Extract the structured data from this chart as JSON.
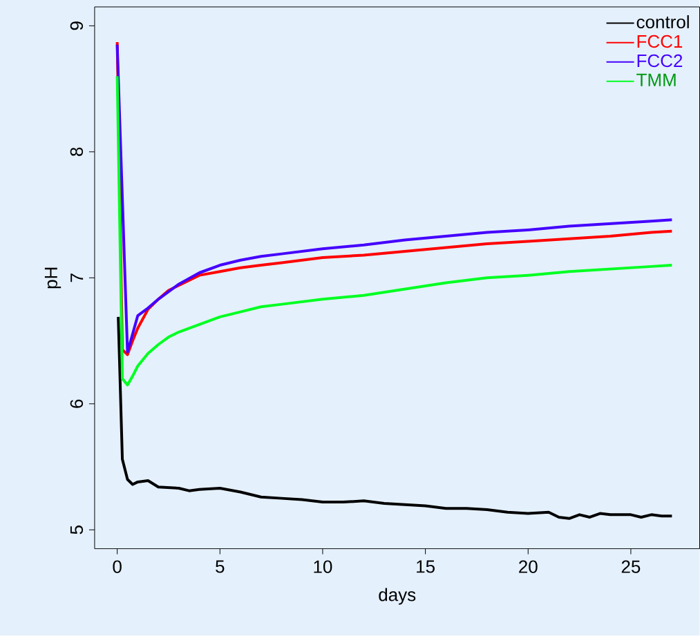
{
  "chart_data": {
    "type": "line",
    "xlabel": "days",
    "ylabel": "pH",
    "xlim": [
      -1.1,
      28.35
    ],
    "ylim": [
      4.85,
      9.15
    ],
    "xticks": [
      0,
      5,
      10,
      15,
      20,
      25
    ],
    "yticks": [
      5,
      6,
      7,
      8,
      9
    ],
    "grid": false,
    "legend": "top right",
    "marker": "none",
    "line_style": "solid",
    "series": [
      {
        "name": "control",
        "color": "#000000",
        "x": [
          0.05,
          0.25,
          0.5,
          0.75,
          1,
          1.5,
          2,
          3,
          3.5,
          4,
          5,
          6,
          7,
          8,
          9,
          10,
          11,
          12,
          13,
          14,
          15,
          16,
          17,
          18,
          19,
          20,
          21,
          21.5,
          22,
          22.5,
          23,
          23.5,
          24,
          25,
          25.5,
          26,
          26.5,
          27
        ],
        "values": [
          6.69,
          5.56,
          5.4,
          5.36,
          5.38,
          5.39,
          5.34,
          5.33,
          5.31,
          5.32,
          5.33,
          5.3,
          5.26,
          5.25,
          5.24,
          5.22,
          5.22,
          5.23,
          5.21,
          5.2,
          5.19,
          5.17,
          5.17,
          5.16,
          5.14,
          5.13,
          5.14,
          5.1,
          5.09,
          5.12,
          5.1,
          5.13,
          5.12,
          5.12,
          5.1,
          5.12,
          5.11,
          5.11
        ]
      },
      {
        "name": "FCC1",
        "color": "#ff0000",
        "x": [
          0,
          0.25,
          0.5,
          0.75,
          1,
          1.5,
          2,
          2.5,
          3,
          3.5,
          4,
          5,
          6,
          7,
          8,
          9,
          10,
          12,
          14,
          16,
          18,
          20,
          22,
          24,
          26,
          27
        ],
        "values": [
          8.87,
          6.43,
          6.39,
          6.5,
          6.6,
          6.75,
          6.83,
          6.9,
          6.94,
          6.98,
          7.02,
          7.05,
          7.08,
          7.1,
          7.12,
          7.14,
          7.16,
          7.18,
          7.21,
          7.24,
          7.27,
          7.29,
          7.31,
          7.33,
          7.36,
          7.37
        ]
      },
      {
        "name": "FCC2",
        "color": "#4400ff",
        "x": [
          0,
          0.5,
          1,
          1.5,
          2,
          3,
          4,
          5,
          6,
          7,
          8,
          10,
          12,
          14,
          16,
          18,
          20,
          22,
          24,
          26,
          27
        ],
        "values": [
          8.85,
          6.41,
          6.7,
          6.76,
          6.83,
          6.95,
          7.04,
          7.1,
          7.14,
          7.17,
          7.19,
          7.23,
          7.26,
          7.3,
          7.33,
          7.36,
          7.38,
          7.41,
          7.43,
          7.45,
          7.46
        ]
      },
      {
        "name": "TMM",
        "color": "#00ff22",
        "x": [
          0,
          0.25,
          0.5,
          0.75,
          1,
          1.5,
          2,
          2.5,
          3,
          4,
          5,
          6,
          7,
          8,
          10,
          12,
          14,
          16,
          18,
          20,
          22,
          24,
          26,
          27
        ],
        "values": [
          8.6,
          6.2,
          6.15,
          6.22,
          6.3,
          6.4,
          6.47,
          6.53,
          6.57,
          6.63,
          6.69,
          6.73,
          6.77,
          6.79,
          6.83,
          6.86,
          6.91,
          6.96,
          7.0,
          7.02,
          7.05,
          7.07,
          7.09,
          7.1
        ]
      }
    ]
  }
}
